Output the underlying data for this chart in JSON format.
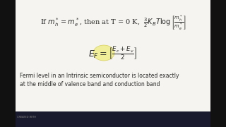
{
  "bg_color": "#000000",
  "content_bg": "#f5f4f0",
  "text_color": "#2a2a2a",
  "line3_text": "Fermi level in an Intrinsic semiconductor is located exactly",
  "line4_text": "at the middle of valence band and conduction band",
  "highlight_color": "#f0ee90",
  "taskbar_color": "#1a1a2e",
  "sidebar_color": "#111111"
}
